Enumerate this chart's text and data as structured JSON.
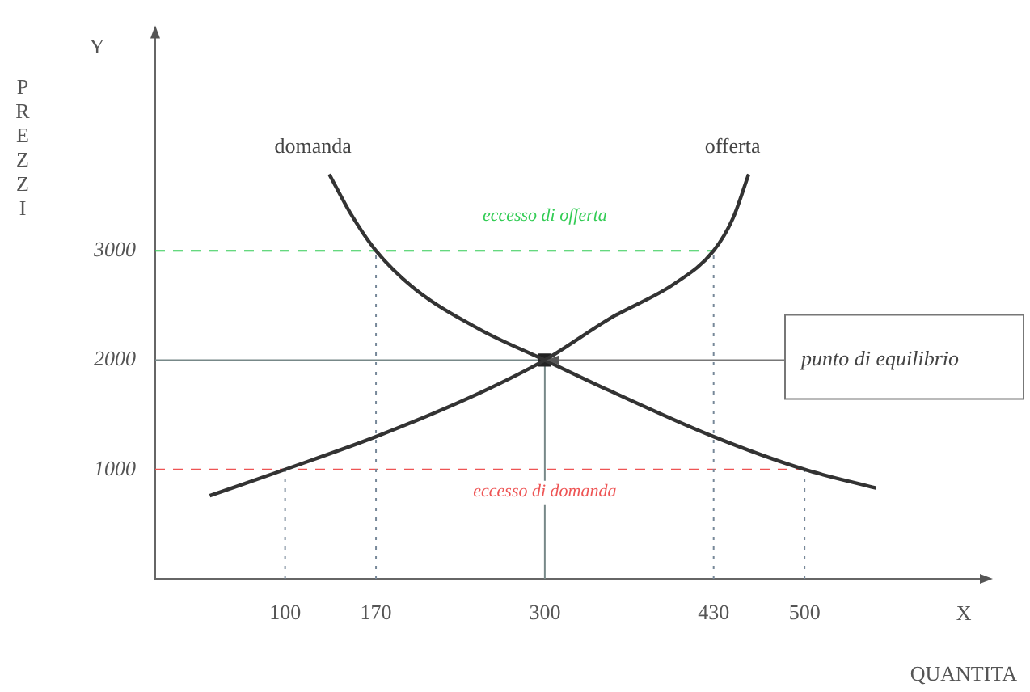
{
  "chart_data": {
    "type": "line",
    "xlabel": "QUANTITA",
    "ylabel": "PREZZI",
    "xlim": [
      0,
      640
    ],
    "ylim": [
      0,
      5000
    ],
    "xticks": [
      100,
      170,
      300,
      430,
      500
    ],
    "yticks": [
      1000,
      2000,
      3000
    ],
    "grid": false,
    "legend": false,
    "marker": "none",
    "line_style": "solid",
    "series": [
      {
        "name": "domanda",
        "color": "#333333",
        "x": [
          134,
          150,
          170,
          200,
          250,
          300,
          350,
          430,
          500,
          555
        ],
        "values": [
          3700,
          3350,
          3000,
          2650,
          2280,
          2000,
          1720,
          1300,
          1000,
          830
        ]
      },
      {
        "name": "offerta",
        "color": "#333333",
        "x": [
          42,
          100,
          170,
          250,
          300,
          350,
          400,
          430,
          445,
          457
        ],
        "values": [
          760,
          1000,
          1300,
          1700,
          2000,
          2380,
          2700,
          3000,
          3300,
          3700
        ]
      },
      {
        "type": "scatter",
        "marker": "square",
        "color": "#222222",
        "x": [
          300
        ],
        "values": [
          2000
        ]
      }
    ],
    "ref_lines": [
      {
        "axis": "y",
        "value": 3000,
        "label": "eccesso di offerta",
        "color": "#33cc55",
        "line_style": "dashed"
      },
      {
        "axis": "y",
        "value": 2000,
        "color": "#778888",
        "line_style": "solid"
      },
      {
        "axis": "y",
        "value": 1000,
        "label": "eccesso di domanda",
        "color": "#ee5555",
        "line_style": "dashed"
      },
      {
        "axis": "x",
        "value": 100,
        "color": "#778899",
        "line_style": "dotted"
      },
      {
        "axis": "x",
        "value": 170,
        "color": "#778899",
        "line_style": "dotted"
      },
      {
        "axis": "x",
        "value": 300,
        "color": "#778888",
        "line_style": "solid"
      },
      {
        "axis": "x",
        "value": 430,
        "color": "#778899",
        "line_style": "dotted"
      },
      {
        "axis": "x",
        "value": 500,
        "color": "#778899",
        "line_style": "dotted"
      }
    ],
    "annotations": [
      "Y",
      "X",
      {
        "text": "punto di equilibrio",
        "x": 300,
        "y": 2000
      }
    ]
  }
}
